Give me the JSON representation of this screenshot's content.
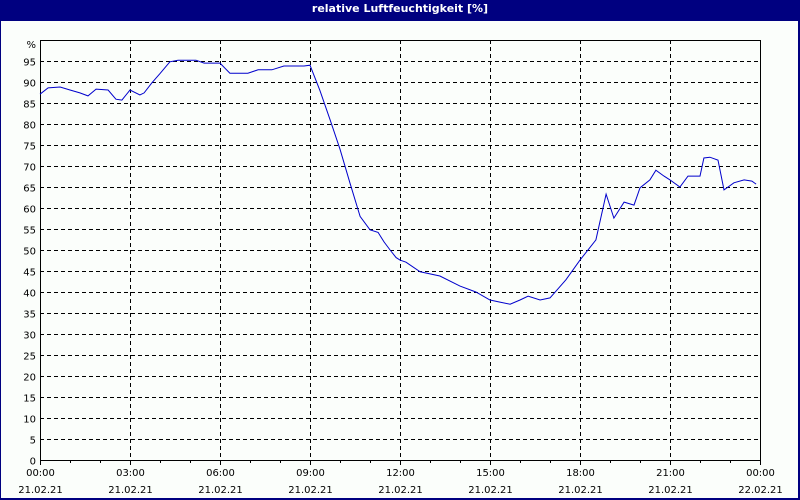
{
  "window": {
    "title": "relative Luftfeuchtigkeit [%]",
    "colors": {
      "title_bar": "#000080",
      "background": "#fbfefb",
      "series": "#0000cc",
      "grid": "#000000"
    }
  },
  "chart_data": {
    "type": "line",
    "title": "relative Luftfeuchtigkeit [%]",
    "xlabel": "",
    "ylabel": "%",
    "ylim": [
      0,
      100
    ],
    "y_ticks": [
      0,
      5,
      10,
      15,
      20,
      25,
      30,
      35,
      40,
      45,
      50,
      55,
      60,
      65,
      70,
      75,
      80,
      85,
      90,
      95
    ],
    "y_unit_label": "%",
    "x_ticks": [
      {
        "time": "00:00",
        "date": "21.02.21"
      },
      {
        "time": "03:00",
        "date": "21.02.21"
      },
      {
        "time": "06:00",
        "date": "21.02.21"
      },
      {
        "time": "09:00",
        "date": "21.02.21"
      },
      {
        "time": "12:00",
        "date": "21.02.21"
      },
      {
        "time": "15:00",
        "date": "21.02.21"
      },
      {
        "time": "18:00",
        "date": "21.02.21"
      },
      {
        "time": "21:00",
        "date": "21.02.21"
      },
      {
        "time": "00:00",
        "date": "22.02.21"
      }
    ],
    "grid": true,
    "legend": "none",
    "series": [
      {
        "name": "relative Luftfeuchtigkeit",
        "x_hours": [
          0,
          0.27,
          0.67,
          1.0,
          1.33,
          1.6,
          1.87,
          2.27,
          2.53,
          2.73,
          3.0,
          3.33,
          3.47,
          3.73,
          4.0,
          4.33,
          4.6,
          5.2,
          5.47,
          6.0,
          6.33,
          6.93,
          7.27,
          7.73,
          8.13,
          8.8,
          9.0,
          9.33,
          9.67,
          10.0,
          10.33,
          10.67,
          11.0,
          11.27,
          11.47,
          11.67,
          11.87,
          12.0,
          12.2,
          12.67,
          13.33,
          14.0,
          14.53,
          15.0,
          15.33,
          15.67,
          16.0,
          16.27,
          16.67,
          17.0,
          17.53,
          18.0,
          18.53,
          18.87,
          19.13,
          19.47,
          19.8,
          20.0,
          20.33,
          20.53,
          20.8,
          21.0,
          21.33,
          21.6,
          22.0,
          22.13,
          22.33,
          22.6,
          22.8,
          23.13,
          23.47,
          23.73,
          23.87
        ],
        "values": [
          87.1,
          88.6,
          88.8,
          88.1,
          87.4,
          86.7,
          88.3,
          88.1,
          85.9,
          85.7,
          88.1,
          86.9,
          87.4,
          89.8,
          92.0,
          94.8,
          95.2,
          95.2,
          94.5,
          94.5,
          92.1,
          92.1,
          92.9,
          92.9,
          93.8,
          93.8,
          94.0,
          88.0,
          81.0,
          74.0,
          66.0,
          58.0,
          54.8,
          54.2,
          51.9,
          50.0,
          48.2,
          47.6,
          47.1,
          44.8,
          43.8,
          41.4,
          40.0,
          38.1,
          37.6,
          37.1,
          38.1,
          39.0,
          38.1,
          38.6,
          42.9,
          47.6,
          52.4,
          63.3,
          57.6,
          61.4,
          60.7,
          64.8,
          66.7,
          69.0,
          67.6,
          66.7,
          65.0,
          67.6,
          67.6,
          71.9,
          72.1,
          71.4,
          64.3,
          66.0,
          66.7,
          66.4,
          65.7
        ]
      }
    ]
  }
}
